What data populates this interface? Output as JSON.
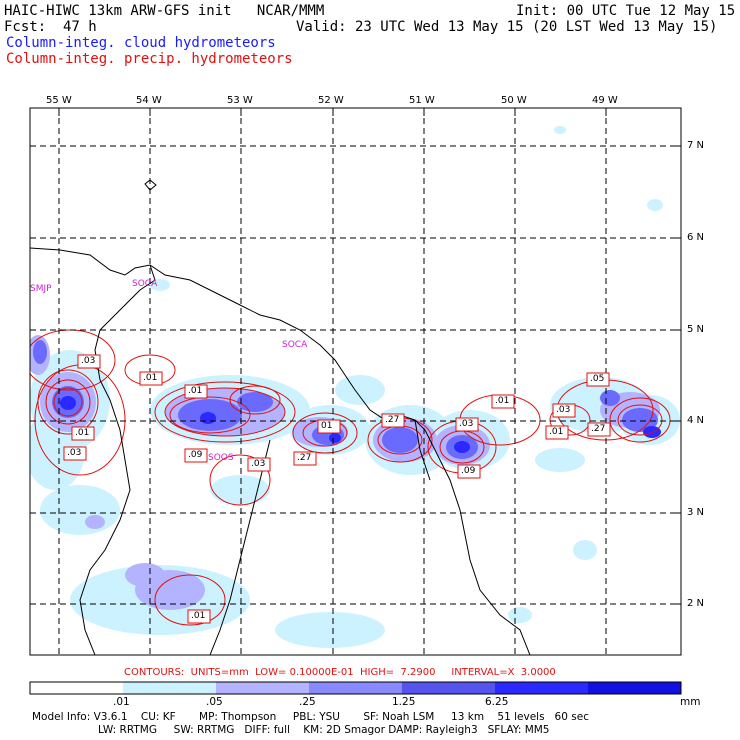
{
  "header": {
    "title": "HAIC-HIWC 13km ARW-GFS init   NCAR/MMM",
    "init": "Init: 00 UTC Tue 12 May 15",
    "fcst_label": "Fcst:",
    "fcst_value": "47 h",
    "valid": "Valid: 23 UTC Wed 13 May 15 (20 LST Wed 13 May 15)",
    "field1": "Column-integ. cloud hydrometeors",
    "field2": "Column-integ. precip. hydrometeors",
    "field1_color": "#1a1aff",
    "field2_color": "#e01010"
  },
  "map": {
    "lon_labels": [
      "55 W",
      "54 W",
      "53 W",
      "52 W",
      "51 W",
      "50 W",
      "49 W"
    ],
    "lat_labels": [
      "7 N",
      "6 N",
      "5 N",
      "4 N",
      "3 N",
      "2 N"
    ],
    "place_labels": [
      "SMJP",
      "SOCA",
      "SOCA",
      "SOOS"
    ],
    "place_color": "#cc22cc",
    "contour_labels": [
      ".03",
      ".01",
      ".01",
      ".01",
      ".03",
      ".09",
      "01",
      ".03",
      ".27",
      ".27",
      ".03",
      ".01",
      ".03",
      ".05",
      ".01",
      ".27",
      ".09",
      ".01"
    ]
  },
  "footer": {
    "contours_line": "CONTOURS:  UNITS=mm  LOW= 0.10000E-01  HIGH=  7.2900     INTERVAL=X  3.0000",
    "colorbar_ticks": [
      ".01",
      ".05",
      ".25",
      "1.25",
      "6.25"
    ],
    "colorbar_unit": "mm",
    "colorbar_colors": [
      "#ffffff",
      "#ccf2ff",
      "#b3b3ff",
      "#8a8aff",
      "#5555ee",
      "#2a2aff",
      "#1010e0"
    ],
    "model_info_1": "Model Info: V3.6.1    CU: KF       MP: Thompson     PBL: YSU       SF: Noah LSM     13 km    51 levels   60 sec",
    "model_info_2": "LW: RRTMG     SW: RRTMG   DIFF: full    KM: 2D Smagor DAMP: Rayleigh3   SFLAY: MM5"
  }
}
